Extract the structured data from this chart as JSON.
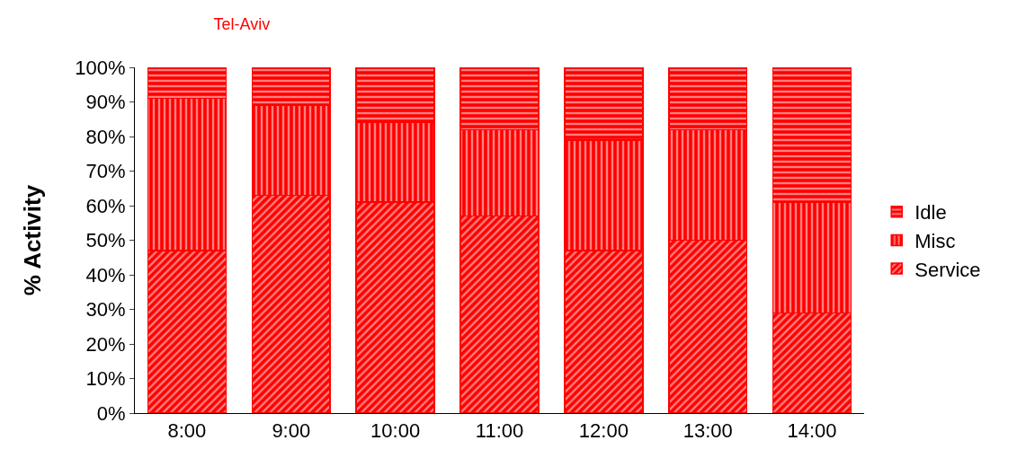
{
  "chart_data": {
    "type": "bar",
    "title": "Tel-Aviv",
    "ylabel": "% Activity",
    "stacked": true,
    "categories": [
      "8:00",
      "9:00",
      "10:00",
      "11:00",
      "12:00",
      "13:00",
      "14:00"
    ],
    "series": [
      {
        "name": "Service",
        "color": "#ff0000",
        "values": [
          47,
          63,
          61,
          57,
          47,
          50,
          29
        ]
      },
      {
        "name": "Misc",
        "color": "#ff0000",
        "values": [
          44,
          26,
          23,
          25,
          32,
          32,
          32
        ]
      },
      {
        "name": "Idle",
        "color": "#ff0000",
        "values": [
          9,
          11,
          16,
          18,
          21,
          18,
          39
        ]
      }
    ],
    "ylim": [
      0,
      100
    ],
    "yticks": [
      {
        "value": 0,
        "label": "0%"
      },
      {
        "value": 10,
        "label": "10%"
      },
      {
        "value": 20,
        "label": "20%"
      },
      {
        "value": 30,
        "label": "30%"
      },
      {
        "value": 40,
        "label": "40%"
      },
      {
        "value": 50,
        "label": "50%"
      },
      {
        "value": 60,
        "label": "60%"
      },
      {
        "value": 70,
        "label": "70%"
      },
      {
        "value": 80,
        "label": "80%"
      },
      {
        "value": 90,
        "label": "90%"
      },
      {
        "value": 100,
        "label": "100%"
      }
    ],
    "legend": "right",
    "grid": false
  }
}
